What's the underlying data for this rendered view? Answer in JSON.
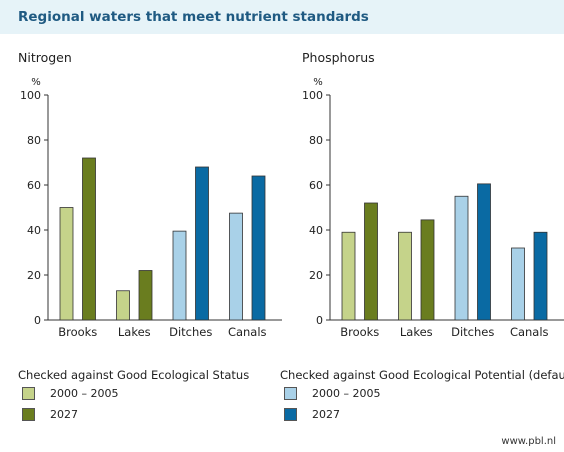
{
  "header": {
    "title": "Regional waters that meet nutrient standards"
  },
  "colors": {
    "status_2000": "#c5d38a",
    "status_2027": "#6a7d1f",
    "potential_2000": "#a9d1e8",
    "potential_2027": "#0a6aa3",
    "bar_outline": "#333333"
  },
  "chart_data": [
    {
      "type": "bar",
      "title": "Nitrogen",
      "ylabel": "%",
      "ylim": [
        0,
        100
      ],
      "yticks": [
        0,
        20,
        40,
        60,
        80,
        100
      ],
      "categories": [
        "Brooks",
        "Lakes",
        "Ditches",
        "Canals"
      ],
      "series": [
        {
          "name": "2000 – 2005",
          "values": [
            50,
            13,
            39.5,
            47.5
          ]
        },
        {
          "name": "2027",
          "values": [
            72,
            22,
            68,
            64
          ]
        }
      ]
    },
    {
      "type": "bar",
      "title": "Phosphorus",
      "ylabel": "%",
      "ylim": [
        0,
        100
      ],
      "yticks": [
        0,
        20,
        40,
        60,
        80,
        100
      ],
      "categories": [
        "Brooks",
        "Lakes",
        "Ditches",
        "Canals"
      ],
      "series": [
        {
          "name": "2000 – 2005",
          "values": [
            39,
            39,
            55,
            32
          ]
        },
        {
          "name": "2027",
          "values": [
            52,
            44.5,
            60.5,
            39
          ]
        }
      ]
    }
  ],
  "legend": {
    "status": {
      "heading": "Checked against Good Ecological Status",
      "items": [
        "2000 – 2005",
        "2027"
      ]
    },
    "potential": {
      "heading": "Checked against Good Ecological Potential (default)",
      "items": [
        "2000 – 2005",
        "2027"
      ]
    }
  },
  "source": "www.pbl.nl"
}
